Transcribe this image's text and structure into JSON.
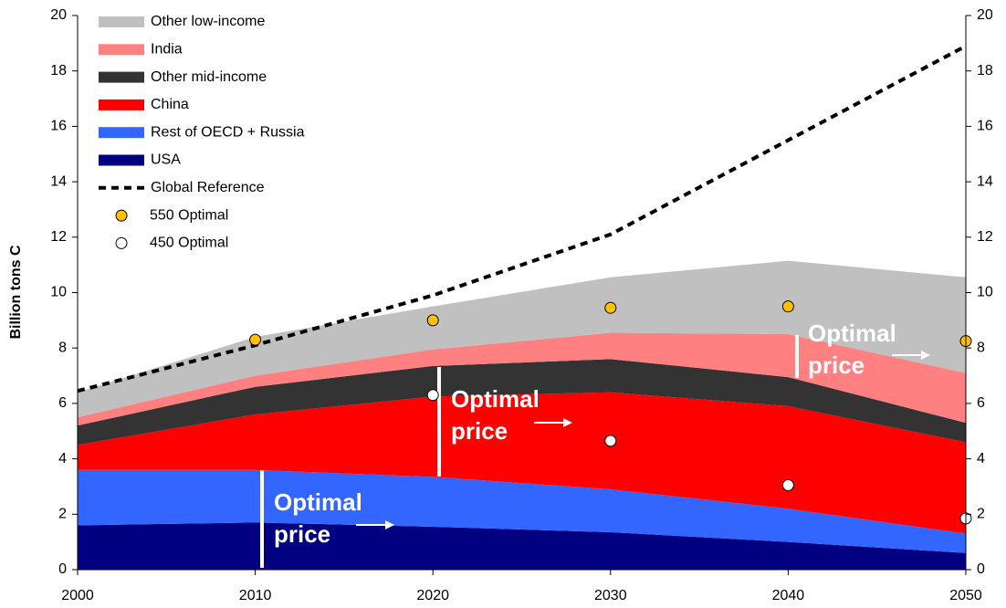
{
  "chart_data": {
    "type": "area",
    "y_label": "Billion tons C",
    "x": [
      2000,
      2010,
      2020,
      2030,
      2040,
      2050
    ],
    "xlim": [
      2000,
      2050
    ],
    "xticks": [
      2000,
      2010,
      2020,
      2030,
      2040,
      2050
    ],
    "ylim": [
      0,
      20
    ],
    "yticks": [
      0,
      2,
      4,
      6,
      8,
      10,
      12,
      14,
      16,
      18,
      20
    ],
    "y2lim": [
      0,
      20
    ],
    "y2ticks": [
      0,
      2,
      4,
      6,
      8,
      10,
      12,
      14,
      16,
      18,
      20
    ],
    "grid": false,
    "legend": "upper left",
    "series": [
      {
        "name": "USA",
        "type": "area",
        "color": "#000080",
        "values": [
          1.6,
          1.7,
          1.55,
          1.35,
          1.0,
          0.6
        ]
      },
      {
        "name": "Rest of OECD + Russia",
        "type": "area",
        "color": "#3366ff",
        "values": [
          2.0,
          1.9,
          1.8,
          1.55,
          1.2,
          0.7
        ]
      },
      {
        "name": "China",
        "type": "area",
        "color": "#ff0000",
        "values": [
          0.9,
          2.0,
          2.9,
          3.5,
          3.7,
          3.3
        ]
      },
      {
        "name": "Other mid-income",
        "type": "area",
        "color": "#333333",
        "values": [
          0.7,
          1.0,
          1.1,
          1.2,
          1.05,
          0.7
        ]
      },
      {
        "name": "India",
        "type": "area",
        "color": "#ff8080",
        "values": [
          0.3,
          0.4,
          0.6,
          0.95,
          1.55,
          1.8
        ]
      },
      {
        "name": "Other low-income",
        "type": "area",
        "color": "#c0c0c0",
        "values": [
          0.9,
          1.4,
          1.55,
          2.0,
          2.65,
          3.45
        ]
      },
      {
        "name": "Global Reference",
        "type": "line",
        "color": "#000000",
        "dashed": true,
        "values": [
          6.45,
          8.1,
          9.9,
          12.1,
          15.5,
          18.9
        ]
      },
      {
        "name": "550 Optimal",
        "type": "scatter",
        "color": "#ffc000",
        "values": [
          null,
          8.3,
          9.0,
          9.45,
          9.5,
          8.25
        ]
      },
      {
        "name": "450 Optimal",
        "type": "scatter",
        "color": "#ffffff",
        "values": [
          null,
          null,
          6.3,
          4.65,
          3.05,
          1.85
        ]
      }
    ],
    "annotations": [
      [
        "Optimal",
        "price"
      ],
      [
        "Optimal",
        "price"
      ],
      [
        "Optimal",
        "price"
      ]
    ]
  }
}
